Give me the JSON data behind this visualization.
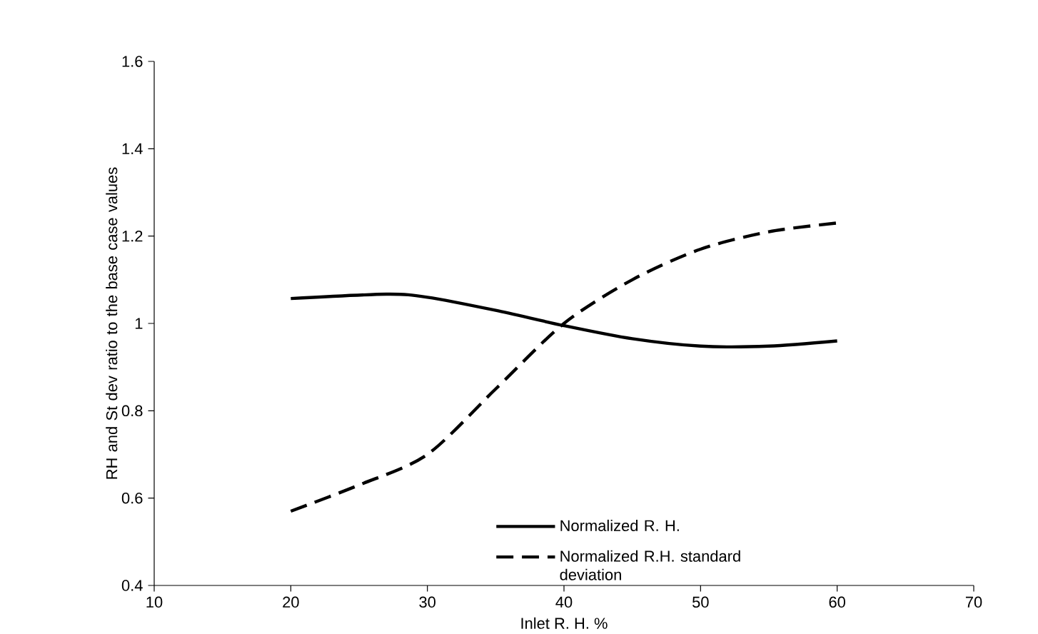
{
  "chart_data": {
    "type": "line",
    "xlabel": "Inlet R. H.       %",
    "ylabel": "RH and St dev ratio to the base case values",
    "xlim": [
      10,
      70
    ],
    "xticks": [
      10,
      20,
      30,
      40,
      50,
      60,
      70
    ],
    "ylim": [
      0.4,
      1.6
    ],
    "yticks": [
      0.4,
      0.6,
      0.8,
      1,
      1.2,
      1.4,
      1.6
    ],
    "grid": false,
    "legend": "bottom right",
    "marker": "none",
    "series": [
      {
        "name": "Normalized R. H.",
        "color": "#000000",
        "line_style": "solid",
        "x": [
          20,
          27,
          30,
          35,
          40,
          45,
          50,
          55,
          60
        ],
        "values": [
          1.057,
          1.067,
          1.06,
          1.03,
          0.995,
          0.965,
          0.948,
          0.948,
          0.96
        ]
      },
      {
        "name": "Normalized R.H. standard deviation",
        "color": "#000000",
        "line_style": "dashed",
        "x": [
          20,
          25,
          30,
          35,
          40,
          45,
          50,
          55,
          60
        ],
        "values": [
          0.57,
          0.63,
          0.7,
          0.85,
          1.0,
          1.1,
          1.17,
          1.21,
          1.23
        ]
      }
    ]
  }
}
